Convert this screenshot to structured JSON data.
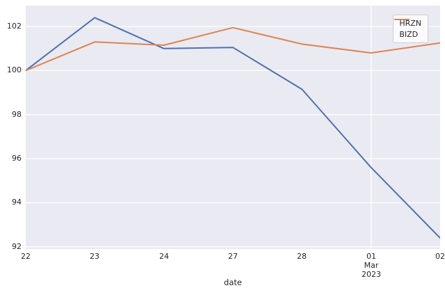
{
  "chart_data": {
    "type": "line",
    "title": "",
    "xlabel": "date",
    "ylabel": "",
    "x_tick_labels": [
      {
        "label": "22",
        "sublabels": []
      },
      {
        "label": "23",
        "sublabels": []
      },
      {
        "label": "24",
        "sublabels": []
      },
      {
        "label": "27",
        "sublabels": []
      },
      {
        "label": "28",
        "sublabels": []
      },
      {
        "label": "01",
        "sublabels": [
          "Mar",
          "2023"
        ]
      },
      {
        "label": "02",
        "sublabels": []
      }
    ],
    "series": [
      {
        "name": "HRZN",
        "color": "#4c72b0",
        "values": [
          100.0,
          102.4,
          101.0,
          101.05,
          99.15,
          95.6,
          92.4
        ]
      },
      {
        "name": "BIZD",
        "color": "#dd8452",
        "values": [
          100.0,
          101.3,
          101.15,
          101.95,
          101.2,
          100.8,
          101.25
        ]
      }
    ],
    "yticks": [
      92,
      94,
      96,
      98,
      100,
      102
    ],
    "ylim": [
      91.9,
      102.95
    ],
    "legend": {
      "position": "upper right"
    },
    "grid": {
      "horizontal": "all-yticks",
      "vertical_tick_index": 5,
      "color": "#ffffff"
    }
  },
  "colors": {
    "figure_bg": "#ffffff",
    "plot_bg": "#eaeaf2",
    "grid": "#ffffff",
    "text": "#262626",
    "legend_border": "#cccccc",
    "hrzn_line": "#4c72b0",
    "bizd_line": "#dd8452"
  }
}
